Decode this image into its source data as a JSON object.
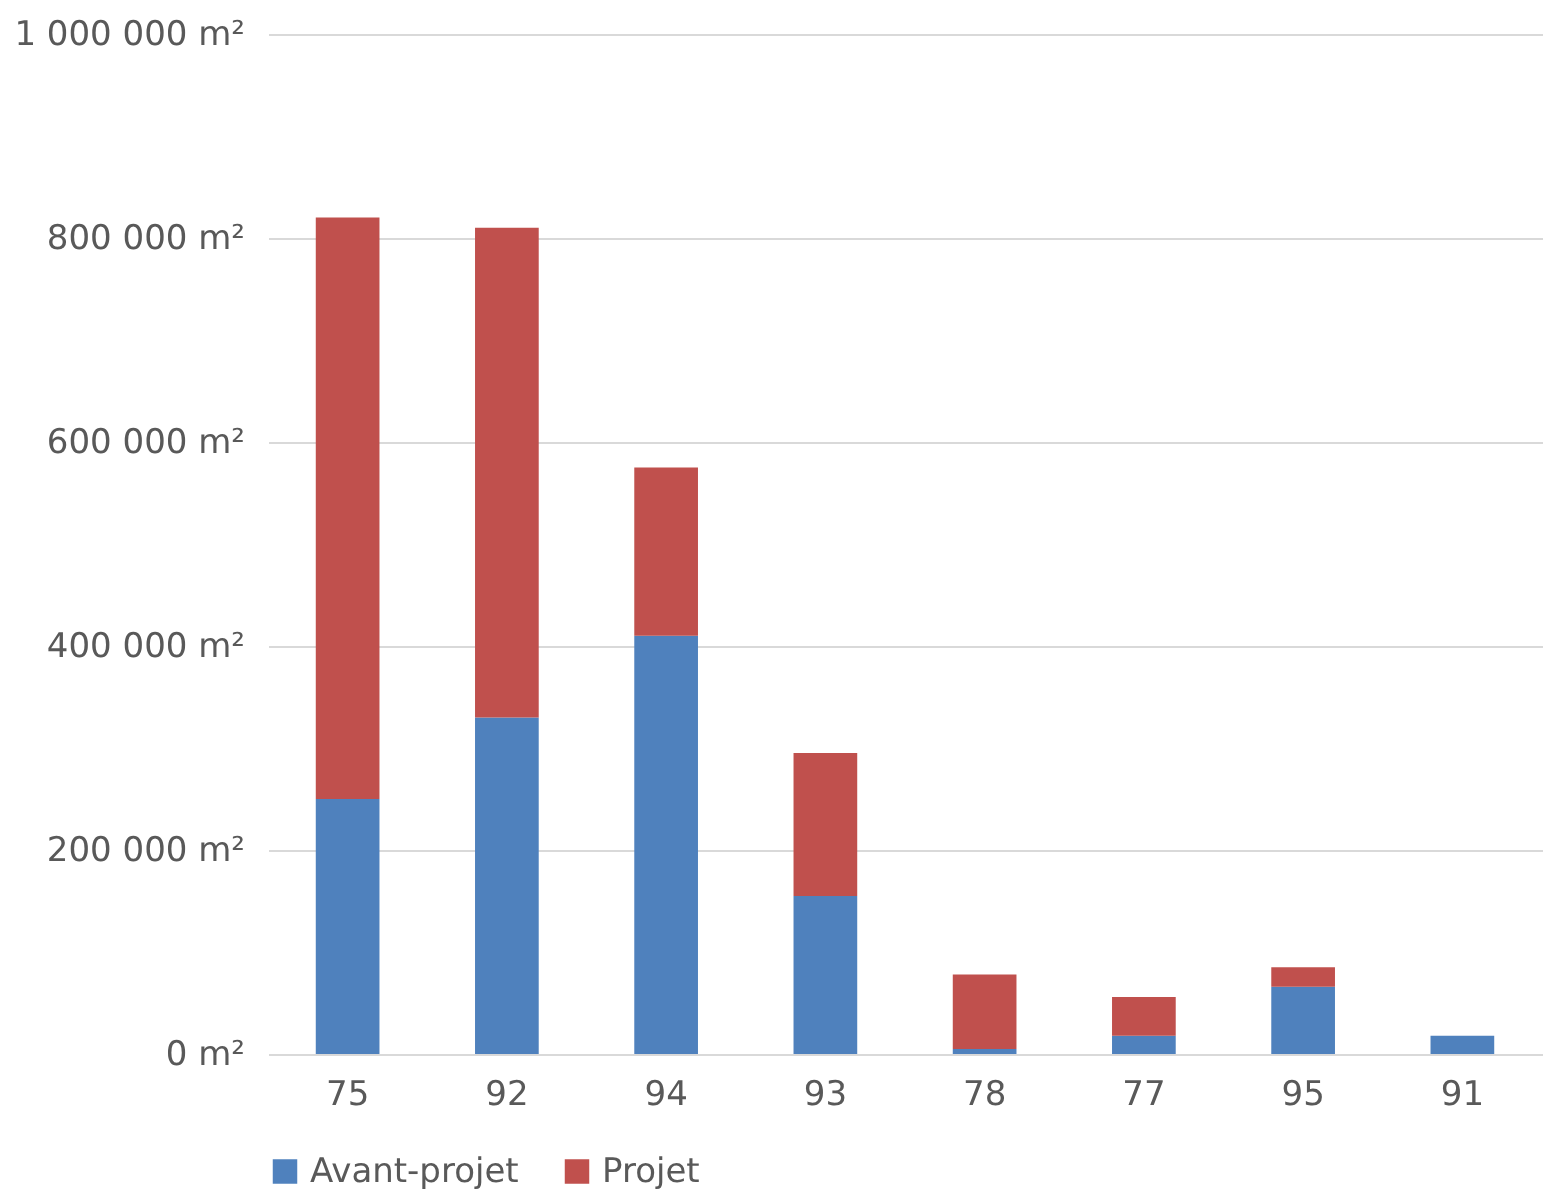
{
  "chart_data": {
    "type": "bar",
    "stacked": true,
    "categories": [
      "75",
      "92",
      "94",
      "93",
      "78",
      "77",
      "95",
      "91"
    ],
    "series": [
      {
        "name": "Avant-projet",
        "color": "#4f81bd",
        "values": [
          250000,
          330000,
          410000,
          155000,
          5000,
          18000,
          66000,
          18000
        ]
      },
      {
        "name": "Projet",
        "color": "#c0504d",
        "values": [
          570000,
          480000,
          165000,
          140000,
          73000,
          38000,
          19000,
          0
        ]
      }
    ],
    "ylim": [
      0,
      1000000
    ],
    "yticks": [
      {
        "value": 0,
        "label": "0 m²"
      },
      {
        "value": 200000,
        "label": "200 000 m²"
      },
      {
        "value": 400000,
        "label": "400 000 m²"
      },
      {
        "value": 600000,
        "label": "600 000 m²"
      },
      {
        "value": 800000,
        "label": "800 000 m²"
      },
      {
        "value": 1000000,
        "label": "1 000 000 m²"
      }
    ],
    "grid": "y",
    "legend": "bottom"
  }
}
